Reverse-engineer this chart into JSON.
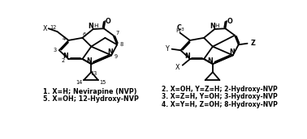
{
  "background": "#ffffff",
  "lw": 1.3,
  "fs": 5.8,
  "fs_small": 4.8,
  "label_left": [
    "1. X=H; Nevirapine (NVP)",
    "5. X=OH; 12-Hydroxy-NVP"
  ],
  "label_right": [
    "2. X=OH, Y=Z=H; 2-Hydroxy-NVP",
    "3. X=Z=H, Y=OH; 3-Hydroxy-NVP",
    "4. X=Y=H, Z=OH; 8-Hydroxy-NVP"
  ]
}
